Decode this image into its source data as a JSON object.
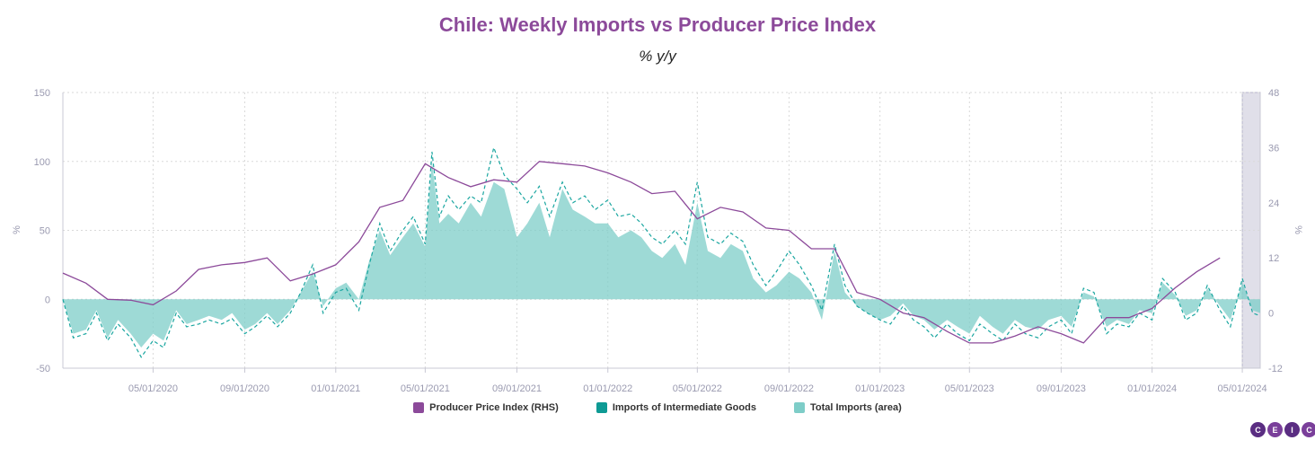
{
  "chart_data": {
    "type": "area",
    "title": "Chile: Weekly Imports vs Producer Price Index",
    "subtitle": "% y/y",
    "ylabel_left": "%",
    "ylabel_right": "%",
    "y_left_ticks": [
      150,
      100,
      50,
      0,
      -50
    ],
    "y_right_ticks": [
      48,
      36,
      24,
      12,
      0,
      -12
    ],
    "ylim_left": [
      -50,
      150
    ],
    "ylim_right": [
      -12,
      48
    ],
    "x_ticks": [
      "05/01/2020",
      "09/01/2020",
      "01/01/2021",
      "05/01/2021",
      "09/01/2021",
      "01/01/2022",
      "05/01/2022",
      "09/01/2022",
      "01/01/2023",
      "05/01/2023",
      "09/01/2023",
      "01/01/2024",
      "05/01/2024"
    ],
    "x_range": [
      "2020-01-01",
      "2024-05-25"
    ],
    "grid": true,
    "legend_position": "bottom",
    "series": [
      {
        "name": "Producer Price Index (RHS)",
        "axis": "right",
        "style": "line",
        "color": "#8c4a9a",
        "points": [
          [
            "2020-01-01",
            8.7
          ],
          [
            "2020-02-01",
            6.5
          ],
          [
            "2020-03-01",
            3.0
          ],
          [
            "2020-04-01",
            2.8
          ],
          [
            "2020-05-01",
            1.8
          ],
          [
            "2020-06-01",
            4.8
          ],
          [
            "2020-07-01",
            9.5
          ],
          [
            "2020-08-01",
            10.5
          ],
          [
            "2020-09-01",
            11.0
          ],
          [
            "2020-10-01",
            12.0
          ],
          [
            "2020-11-01",
            7.0
          ],
          [
            "2020-12-01",
            8.5
          ],
          [
            "2021-01-01",
            10.5
          ],
          [
            "2021-02-01",
            15.5
          ],
          [
            "2021-03-01",
            23.0
          ],
          [
            "2021-04-01",
            24.5
          ],
          [
            "2021-05-01",
            32.5
          ],
          [
            "2021-06-01",
            29.5
          ],
          [
            "2021-07-01",
            27.5
          ],
          [
            "2021-08-01",
            29.0
          ],
          [
            "2021-09-01",
            28.5
          ],
          [
            "2021-10-01",
            33.0
          ],
          [
            "2021-11-01",
            32.5
          ],
          [
            "2021-12-01",
            32.0
          ],
          [
            "2022-01-01",
            30.5
          ],
          [
            "2022-02-01",
            28.5
          ],
          [
            "2022-03-01",
            26.0
          ],
          [
            "2022-04-01",
            26.5
          ],
          [
            "2022-05-01",
            20.5
          ],
          [
            "2022-06-01",
            23.0
          ],
          [
            "2022-07-01",
            22.0
          ],
          [
            "2022-08-01",
            18.5
          ],
          [
            "2022-09-01",
            18.0
          ],
          [
            "2022-10-01",
            14.0
          ],
          [
            "2022-11-01",
            14.0
          ],
          [
            "2022-12-01",
            4.5
          ],
          [
            "2023-01-01",
            3.0
          ],
          [
            "2023-02-01",
            0.0
          ],
          [
            "2023-03-01",
            -1.0
          ],
          [
            "2023-04-01",
            -4.0
          ],
          [
            "2023-05-01",
            -6.5
          ],
          [
            "2023-06-01",
            -6.5
          ],
          [
            "2023-07-01",
            -5.0
          ],
          [
            "2023-08-01",
            -3.0
          ],
          [
            "2023-09-01",
            -4.5
          ],
          [
            "2023-10-01",
            -6.5
          ],
          [
            "2023-11-01",
            -1.0
          ],
          [
            "2023-12-01",
            -1.0
          ],
          [
            "2024-01-01",
            1.0
          ],
          [
            "2024-02-01",
            5.5
          ],
          [
            "2024-03-01",
            9.0
          ],
          [
            "2024-04-01",
            12.0
          ]
        ]
      },
      {
        "name": "Imports of Intermediate Goods",
        "axis": "left",
        "style": "dashed-line",
        "color": "#1aa6a0",
        "points": [
          [
            "2020-01-01",
            0
          ],
          [
            "2020-01-15",
            -28
          ],
          [
            "2020-02-01",
            -25
          ],
          [
            "2020-02-15",
            -10
          ],
          [
            "2020-03-01",
            -30
          ],
          [
            "2020-03-15",
            -18
          ],
          [
            "2020-04-01",
            -28
          ],
          [
            "2020-04-15",
            -42
          ],
          [
            "2020-05-01",
            -30
          ],
          [
            "2020-05-15",
            -35
          ],
          [
            "2020-06-01",
            -10
          ],
          [
            "2020-06-15",
            -20
          ],
          [
            "2020-07-01",
            -18
          ],
          [
            "2020-07-15",
            -15
          ],
          [
            "2020-08-01",
            -18
          ],
          [
            "2020-08-15",
            -14
          ],
          [
            "2020-09-01",
            -25
          ],
          [
            "2020-09-15",
            -20
          ],
          [
            "2020-10-01",
            -12
          ],
          [
            "2020-10-15",
            -20
          ],
          [
            "2020-11-01",
            -10
          ],
          [
            "2020-11-15",
            5
          ],
          [
            "2020-12-01",
            25
          ],
          [
            "2020-12-15",
            -10
          ],
          [
            "2021-01-01",
            5
          ],
          [
            "2021-01-15",
            8
          ],
          [
            "2021-02-01",
            -8
          ],
          [
            "2021-02-15",
            25
          ],
          [
            "2021-03-01",
            55
          ],
          [
            "2021-03-15",
            35
          ],
          [
            "2021-04-01",
            50
          ],
          [
            "2021-04-15",
            60
          ],
          [
            "2021-05-01",
            40
          ],
          [
            "2021-05-10",
            107
          ],
          [
            "2021-05-20",
            60
          ],
          [
            "2021-06-01",
            75
          ],
          [
            "2021-06-15",
            65
          ],
          [
            "2021-07-01",
            75
          ],
          [
            "2021-07-15",
            70
          ],
          [
            "2021-08-01",
            110
          ],
          [
            "2021-08-15",
            90
          ],
          [
            "2021-09-01",
            80
          ],
          [
            "2021-09-15",
            70
          ],
          [
            "2021-10-01",
            82
          ],
          [
            "2021-10-15",
            60
          ],
          [
            "2021-11-01",
            85
          ],
          [
            "2021-11-15",
            70
          ],
          [
            "2021-12-01",
            75
          ],
          [
            "2021-12-15",
            65
          ],
          [
            "2022-01-01",
            72
          ],
          [
            "2022-01-15",
            60
          ],
          [
            "2022-02-01",
            62
          ],
          [
            "2022-02-15",
            55
          ],
          [
            "2022-03-01",
            45
          ],
          [
            "2022-03-15",
            40
          ],
          [
            "2022-04-01",
            50
          ],
          [
            "2022-04-15",
            40
          ],
          [
            "2022-05-01",
            85
          ],
          [
            "2022-05-15",
            45
          ],
          [
            "2022-06-01",
            40
          ],
          [
            "2022-06-15",
            48
          ],
          [
            "2022-07-01",
            42
          ],
          [
            "2022-07-15",
            25
          ],
          [
            "2022-08-01",
            10
          ],
          [
            "2022-08-15",
            20
          ],
          [
            "2022-09-01",
            35
          ],
          [
            "2022-09-15",
            25
          ],
          [
            "2022-10-01",
            10
          ],
          [
            "2022-10-15",
            -8
          ],
          [
            "2022-11-01",
            40
          ],
          [
            "2022-11-15",
            10
          ],
          [
            "2022-12-01",
            -5
          ],
          [
            "2022-12-15",
            -10
          ],
          [
            "2023-01-01",
            -15
          ],
          [
            "2023-01-15",
            -18
          ],
          [
            "2023-02-01",
            -5
          ],
          [
            "2023-02-15",
            -15
          ],
          [
            "2023-03-01",
            -20
          ],
          [
            "2023-03-15",
            -28
          ],
          [
            "2023-04-01",
            -18
          ],
          [
            "2023-04-15",
            -25
          ],
          [
            "2023-05-01",
            -30
          ],
          [
            "2023-05-15",
            -18
          ],
          [
            "2023-06-01",
            -25
          ],
          [
            "2023-06-15",
            -30
          ],
          [
            "2023-07-01",
            -18
          ],
          [
            "2023-07-15",
            -25
          ],
          [
            "2023-08-01",
            -28
          ],
          [
            "2023-08-15",
            -20
          ],
          [
            "2023-09-01",
            -15
          ],
          [
            "2023-09-15",
            -25
          ],
          [
            "2023-10-01",
            8
          ],
          [
            "2023-10-15",
            5
          ],
          [
            "2023-11-01",
            -25
          ],
          [
            "2023-11-15",
            -18
          ],
          [
            "2023-12-01",
            -20
          ],
          [
            "2023-12-15",
            -10
          ],
          [
            "2024-01-01",
            -15
          ],
          [
            "2024-01-15",
            15
          ],
          [
            "2024-02-01",
            5
          ],
          [
            "2024-02-15",
            -15
          ],
          [
            "2024-03-01",
            -10
          ],
          [
            "2024-03-15",
            10
          ],
          [
            "2024-04-01",
            -8
          ],
          [
            "2024-04-15",
            -20
          ],
          [
            "2024-05-01",
            15
          ],
          [
            "2024-05-15",
            -10
          ],
          [
            "2024-05-25",
            -12
          ]
        ]
      },
      {
        "name": "Total Imports (area)",
        "axis": "left",
        "style": "area",
        "color": "#7ecdc8",
        "points": [
          [
            "2020-01-01",
            0
          ],
          [
            "2020-01-15",
            -25
          ],
          [
            "2020-02-01",
            -22
          ],
          [
            "2020-02-15",
            -8
          ],
          [
            "2020-03-01",
            -28
          ],
          [
            "2020-03-15",
            -15
          ],
          [
            "2020-04-01",
            -25
          ],
          [
            "2020-04-15",
            -35
          ],
          [
            "2020-05-01",
            -25
          ],
          [
            "2020-05-15",
            -30
          ],
          [
            "2020-06-01",
            -8
          ],
          [
            "2020-06-15",
            -18
          ],
          [
            "2020-07-01",
            -15
          ],
          [
            "2020-07-15",
            -12
          ],
          [
            "2020-08-01",
            -15
          ],
          [
            "2020-08-15",
            -10
          ],
          [
            "2020-09-01",
            -22
          ],
          [
            "2020-09-15",
            -18
          ],
          [
            "2020-10-01",
            -10
          ],
          [
            "2020-10-15",
            -18
          ],
          [
            "2020-11-01",
            -8
          ],
          [
            "2020-11-15",
            5
          ],
          [
            "2020-12-01",
            20
          ],
          [
            "2020-12-15",
            -5
          ],
          [
            "2021-01-01",
            8
          ],
          [
            "2021-01-15",
            12
          ],
          [
            "2021-02-01",
            0
          ],
          [
            "2021-02-15",
            28
          ],
          [
            "2021-03-01",
            50
          ],
          [
            "2021-03-15",
            32
          ],
          [
            "2021-04-01",
            45
          ],
          [
            "2021-04-15",
            55
          ],
          [
            "2021-05-01",
            38
          ],
          [
            "2021-05-10",
            100
          ],
          [
            "2021-05-20",
            55
          ],
          [
            "2021-06-01",
            62
          ],
          [
            "2021-06-15",
            55
          ],
          [
            "2021-07-01",
            70
          ],
          [
            "2021-07-15",
            60
          ],
          [
            "2021-08-01",
            85
          ],
          [
            "2021-08-15",
            80
          ],
          [
            "2021-09-01",
            45
          ],
          [
            "2021-09-15",
            55
          ],
          [
            "2021-10-01",
            70
          ],
          [
            "2021-10-15",
            45
          ],
          [
            "2021-11-01",
            80
          ],
          [
            "2021-11-15",
            65
          ],
          [
            "2021-12-01",
            60
          ],
          [
            "2021-12-15",
            55
          ],
          [
            "2022-01-01",
            55
          ],
          [
            "2022-01-15",
            45
          ],
          [
            "2022-02-01",
            50
          ],
          [
            "2022-02-15",
            45
          ],
          [
            "2022-03-01",
            35
          ],
          [
            "2022-03-15",
            30
          ],
          [
            "2022-04-01",
            40
          ],
          [
            "2022-04-15",
            25
          ],
          [
            "2022-05-01",
            70
          ],
          [
            "2022-05-15",
            35
          ],
          [
            "2022-06-01",
            30
          ],
          [
            "2022-06-15",
            40
          ],
          [
            "2022-07-01",
            35
          ],
          [
            "2022-07-15",
            15
          ],
          [
            "2022-08-01",
            5
          ],
          [
            "2022-08-15",
            10
          ],
          [
            "2022-09-01",
            20
          ],
          [
            "2022-09-15",
            15
          ],
          [
            "2022-10-01",
            5
          ],
          [
            "2022-10-15",
            -15
          ],
          [
            "2022-11-01",
            35
          ],
          [
            "2022-11-15",
            5
          ],
          [
            "2022-12-01",
            -5
          ],
          [
            "2022-12-15",
            -10
          ],
          [
            "2023-01-01",
            -15
          ],
          [
            "2023-01-15",
            -12
          ],
          [
            "2023-02-01",
            -3
          ],
          [
            "2023-02-15",
            -12
          ],
          [
            "2023-03-01",
            -15
          ],
          [
            "2023-03-15",
            -22
          ],
          [
            "2023-04-01",
            -15
          ],
          [
            "2023-04-15",
            -20
          ],
          [
            "2023-05-01",
            -25
          ],
          [
            "2023-05-15",
            -12
          ],
          [
            "2023-06-01",
            -20
          ],
          [
            "2023-06-15",
            -25
          ],
          [
            "2023-07-01",
            -15
          ],
          [
            "2023-07-15",
            -20
          ],
          [
            "2023-08-01",
            -22
          ],
          [
            "2023-08-15",
            -15
          ],
          [
            "2023-09-01",
            -12
          ],
          [
            "2023-09-15",
            -20
          ],
          [
            "2023-10-01",
            5
          ],
          [
            "2023-10-15",
            2
          ],
          [
            "2023-11-01",
            -20
          ],
          [
            "2023-11-15",
            -15
          ],
          [
            "2023-12-01",
            -18
          ],
          [
            "2023-12-15",
            -8
          ],
          [
            "2024-01-01",
            -10
          ],
          [
            "2024-01-15",
            12
          ],
          [
            "2024-02-01",
            3
          ],
          [
            "2024-02-15",
            -12
          ],
          [
            "2024-03-01",
            -8
          ],
          [
            "2024-03-15",
            8
          ],
          [
            "2024-04-01",
            -5
          ],
          [
            "2024-04-15",
            -15
          ],
          [
            "2024-05-01",
            12
          ],
          [
            "2024-05-15",
            -8
          ],
          [
            "2024-05-25",
            -10
          ]
        ]
      }
    ],
    "highlight_band": {
      "from": "2024-05-01",
      "to": "2024-05-25",
      "color": "#e0dfe9"
    }
  },
  "logo": {
    "letters": [
      "C",
      "E",
      "I",
      "C"
    ],
    "color": "#5a2d82"
  }
}
